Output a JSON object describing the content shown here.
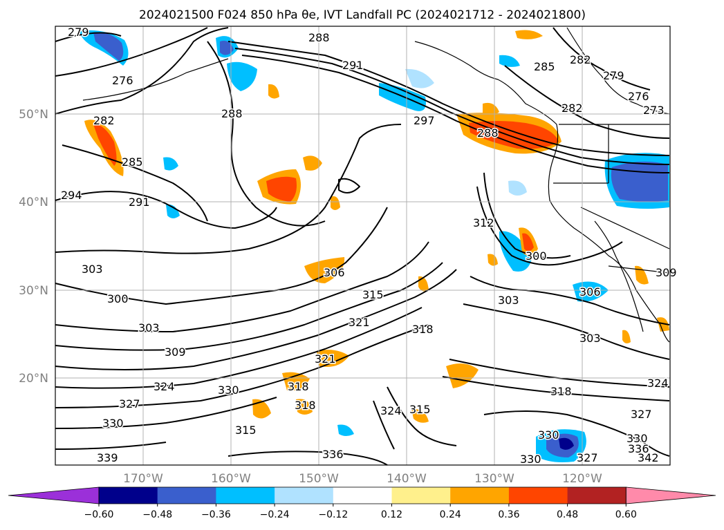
{
  "title": "2024021500 F024 850 hPa θe, IVT Landfall PC (2024021712 - 2024021800)",
  "map": {
    "lat_labels": [
      "50°N",
      "40°N",
      "30°N",
      "20°N"
    ],
    "lon_labels": [
      "170°W",
      "160°W",
      "150°W",
      "140°W",
      "130°W",
      "120°W"
    ],
    "contour_labels": [
      "279",
      "276",
      "282",
      "285",
      "288",
      "291",
      "291",
      "294",
      "297",
      "288",
      "285",
      "282",
      "279",
      "276",
      "273",
      "288",
      "282",
      "306",
      "300",
      "303",
      "300",
      "303",
      "309",
      "312",
      "315",
      "318",
      "321",
      "324",
      "327",
      "330",
      "330",
      "318",
      "321",
      "315",
      "315",
      "318",
      "324",
      "327",
      "330",
      "336",
      "339",
      "303",
      "306",
      "309",
      "303",
      "318",
      "324",
      "327",
      "330",
      "330",
      "336",
      "342"
    ]
  },
  "colorbar": {
    "ticks": [
      "−0.60",
      "−0.48",
      "−0.36",
      "−0.24",
      "−0.12",
      "0.12",
      "0.24",
      "0.36",
      "0.48",
      "0.60"
    ],
    "colors": [
      "#9b30d9",
      "#00008b",
      "#3a5fcd",
      "#00bfff",
      "#b0e2ff",
      "#ffffff",
      "#fff08c",
      "#ffa500",
      "#ff4500",
      "#b22222",
      "#ff8aaa"
    ]
  },
  "chart_data": {
    "type": "heatmap",
    "title": "2024021500 F024 850 hPa θe, IVT Landfall PC (2024021712 - 2024021800)",
    "extent": {
      "lon_range": [
        -178,
        -108
      ],
      "lat_range": [
        10,
        60
      ]
    },
    "contour_field": "850 hPa θe",
    "contour_levels": [
      273,
      276,
      279,
      282,
      285,
      288,
      291,
      294,
      297,
      300,
      303,
      306,
      309,
      312,
      315,
      318,
      321,
      324,
      327,
      330,
      333,
      336,
      339,
      342
    ],
    "shaded_field": "IVT Landfall PC",
    "colorbar_levels": [
      -0.6,
      -0.48,
      -0.36,
      -0.24,
      -0.12,
      0.12,
      0.24,
      0.36,
      0.48,
      0.6
    ],
    "colorbar_extend": "both"
  }
}
